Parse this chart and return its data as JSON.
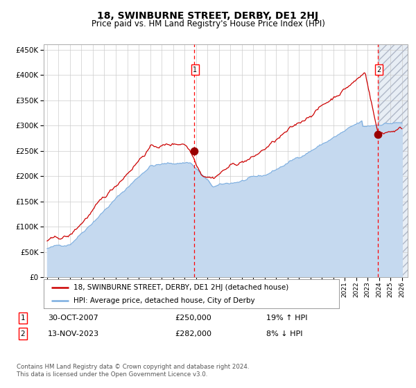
{
  "title": "18, SWINBURNE STREET, DERBY, DE1 2HJ",
  "subtitle": "Price paid vs. HM Land Registry's House Price Index (HPI)",
  "title_fontsize": 10,
  "subtitle_fontsize": 8.5,
  "background_color": "#ffffff",
  "plot_bg_color": "#ffffff",
  "grid_color": "#cccccc",
  "red_line_color": "#cc0000",
  "blue_line_color": "#7aade0",
  "blue_fill_color": "#c5d9ef",
  "hatch_bg_color": "#e8eef5",
  "ylim": [
    0,
    460000
  ],
  "yticks": [
    0,
    50000,
    100000,
    150000,
    200000,
    250000,
    300000,
    350000,
    400000,
    450000
  ],
  "xlim_start": 1994.7,
  "xlim_end": 2026.5,
  "event1_x": 2007.83,
  "event1_y": 250000,
  "event1_label": "1",
  "event2_x": 2023.87,
  "event2_y": 282000,
  "event2_label": "2",
  "legend_line1": "18, SWINBURNE STREET, DERBY, DE1 2HJ (detached house)",
  "legend_line2": "HPI: Average price, detached house, City of Derby",
  "table_row1_num": "1",
  "table_row1_date": "30-OCT-2007",
  "table_row1_price": "£250,000",
  "table_row1_hpi": "19% ↑ HPI",
  "table_row2_num": "2",
  "table_row2_date": "13-NOV-2023",
  "table_row2_price": "£282,000",
  "table_row2_hpi": "8% ↓ HPI",
  "footer": "Contains HM Land Registry data © Crown copyright and database right 2024.\nThis data is licensed under the Open Government Licence v3.0."
}
